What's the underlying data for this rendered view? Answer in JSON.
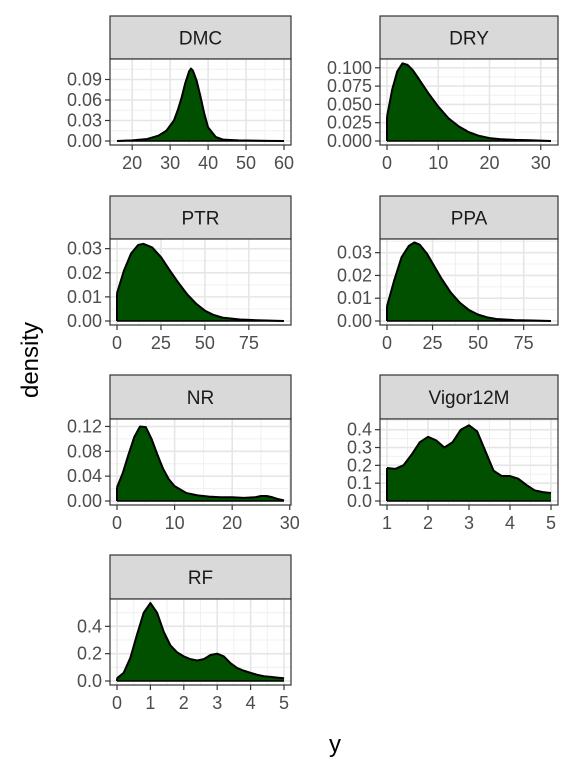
{
  "figure": {
    "xlabel": "y",
    "ylabel": "density",
    "fill_color": "#005000",
    "strip_fill": "#d9d9d9"
  },
  "chart_data": [
    {
      "type": "area",
      "title": "DMC",
      "xlim": [
        16,
        60
      ],
      "ylim": [
        0,
        0.12
      ],
      "xticks": [
        20,
        30,
        40,
        50,
        60
      ],
      "yticks": [
        0.0,
        0.03,
        0.06,
        0.09
      ],
      "ytick_labels": [
        "0.00",
        "0.03",
        "0.06",
        "0.09"
      ],
      "x": [
        16,
        20,
        24,
        27,
        29,
        31,
        32,
        33,
        34,
        35,
        35.5,
        36,
        37,
        38,
        39,
        40,
        42,
        44,
        48,
        52,
        56,
        60
      ],
      "y": [
        0.0,
        0.001,
        0.003,
        0.008,
        0.015,
        0.03,
        0.045,
        0.063,
        0.085,
        0.102,
        0.106,
        0.103,
        0.088,
        0.065,
        0.04,
        0.02,
        0.006,
        0.002,
        0.001,
        0.0005,
        0.0002,
        0.0
      ]
    },
    {
      "type": "area",
      "title": "DRY",
      "xlim": [
        0,
        32
      ],
      "ylim": [
        0,
        0.112
      ],
      "xticks": [
        0,
        10,
        20,
        30
      ],
      "yticks": [
        0.0,
        0.025,
        0.05,
        0.075,
        0.1
      ],
      "ytick_labels": [
        "0.000",
        "0.025",
        "0.050",
        "0.075",
        "0.100"
      ],
      "x": [
        0,
        1,
        2,
        3,
        4,
        5,
        6,
        8,
        10,
        12,
        14,
        16,
        18,
        20,
        22,
        25,
        28,
        32
      ],
      "y": [
        0.033,
        0.07,
        0.095,
        0.106,
        0.104,
        0.097,
        0.087,
        0.066,
        0.047,
        0.031,
        0.02,
        0.012,
        0.007,
        0.004,
        0.0025,
        0.0015,
        0.001,
        0.0
      ]
    },
    {
      "type": "area",
      "title": "PTR",
      "xlim": [
        0,
        95
      ],
      "ylim": [
        0,
        0.034
      ],
      "xticks": [
        0,
        25,
        50,
        75
      ],
      "yticks": [
        0.0,
        0.01,
        0.02,
        0.03
      ],
      "ytick_labels": [
        "0.00",
        "0.01",
        "0.02",
        "0.03"
      ],
      "x": [
        0,
        4,
        8,
        12,
        15,
        20,
        25,
        30,
        35,
        40,
        45,
        50,
        55,
        60,
        70,
        80,
        95
      ],
      "y": [
        0.0115,
        0.021,
        0.028,
        0.0315,
        0.032,
        0.0305,
        0.0265,
        0.021,
        0.0158,
        0.011,
        0.0072,
        0.0043,
        0.0025,
        0.0014,
        0.0006,
        0.0003,
        0.0
      ]
    },
    {
      "type": "area",
      "title": "PPA",
      "xlim": [
        0,
        90
      ],
      "ylim": [
        0,
        0.036
      ],
      "xticks": [
        0,
        25,
        50,
        75
      ],
      "yticks": [
        0.0,
        0.01,
        0.02,
        0.03
      ],
      "ytick_labels": [
        "0.00",
        "0.01",
        "0.02",
        "0.03"
      ],
      "x": [
        0,
        4,
        8,
        12,
        15,
        18,
        22,
        26,
        30,
        35,
        40,
        45,
        50,
        55,
        60,
        70,
        80,
        90
      ],
      "y": [
        0.0065,
        0.018,
        0.028,
        0.033,
        0.0345,
        0.0335,
        0.0295,
        0.024,
        0.0185,
        0.0125,
        0.008,
        0.0048,
        0.0028,
        0.0016,
        0.0009,
        0.0004,
        0.0002,
        0.0
      ]
    },
    {
      "type": "area",
      "title": "NR",
      "xlim": [
        0,
        29
      ],
      "ylim": [
        0,
        0.132
      ],
      "xticks": [
        0,
        10,
        20,
        30
      ],
      "yticks": [
        0.0,
        0.04,
        0.08,
        0.12
      ],
      "ytick_labels": [
        "0.00",
        "0.04",
        "0.08",
        "0.12"
      ],
      "x": [
        0,
        1,
        2,
        3,
        4,
        5,
        6,
        7,
        8,
        9,
        10,
        12,
        14,
        16,
        18,
        20,
        22,
        24,
        25,
        26,
        27,
        28,
        29
      ],
      "y": [
        0.022,
        0.045,
        0.075,
        0.103,
        0.12,
        0.119,
        0.1,
        0.075,
        0.052,
        0.035,
        0.024,
        0.013,
        0.009,
        0.007,
        0.006,
        0.006,
        0.005,
        0.006,
        0.008,
        0.008,
        0.006,
        0.003,
        0.001
      ]
    },
    {
      "type": "area",
      "title": "Vigor12M",
      "xlim": [
        1,
        5
      ],
      "ylim": [
        0,
        0.46
      ],
      "xticks": [
        1,
        2,
        3,
        4,
        5
      ],
      "yticks": [
        0.0,
        0.1,
        0.2,
        0.3,
        0.4
      ],
      "ytick_labels": [
        "0.0",
        "0.1",
        "0.2",
        "0.3",
        "0.4"
      ],
      "x": [
        1.0,
        1.2,
        1.4,
        1.6,
        1.8,
        2.0,
        2.2,
        2.4,
        2.6,
        2.8,
        3.0,
        3.2,
        3.4,
        3.6,
        3.8,
        4.0,
        4.2,
        4.4,
        4.6,
        4.8,
        5.0
      ],
      "y": [
        0.185,
        0.18,
        0.2,
        0.26,
        0.33,
        0.36,
        0.34,
        0.3,
        0.33,
        0.4,
        0.425,
        0.39,
        0.28,
        0.17,
        0.14,
        0.14,
        0.125,
        0.09,
        0.06,
        0.05,
        0.045
      ]
    },
    {
      "type": "area",
      "title": "RF",
      "xlim": [
        0,
        5
      ],
      "ylim": [
        0,
        0.6
      ],
      "xticks": [
        0,
        1,
        2,
        3,
        4,
        5
      ],
      "yticks": [
        0.0,
        0.2,
        0.4
      ],
      "ytick_labels": [
        "0.0",
        "0.2",
        "0.4"
      ],
      "x": [
        0.0,
        0.2,
        0.4,
        0.6,
        0.8,
        1.0,
        1.2,
        1.4,
        1.6,
        1.8,
        2.0,
        2.2,
        2.4,
        2.6,
        2.8,
        3.0,
        3.2,
        3.4,
        3.6,
        3.8,
        4.0,
        4.2,
        4.4,
        4.6,
        4.8,
        5.0
      ],
      "y": [
        0.02,
        0.06,
        0.17,
        0.34,
        0.5,
        0.57,
        0.5,
        0.36,
        0.26,
        0.21,
        0.18,
        0.16,
        0.15,
        0.16,
        0.19,
        0.2,
        0.18,
        0.13,
        0.095,
        0.075,
        0.06,
        0.045,
        0.035,
        0.03,
        0.025,
        0.02
      ]
    }
  ]
}
